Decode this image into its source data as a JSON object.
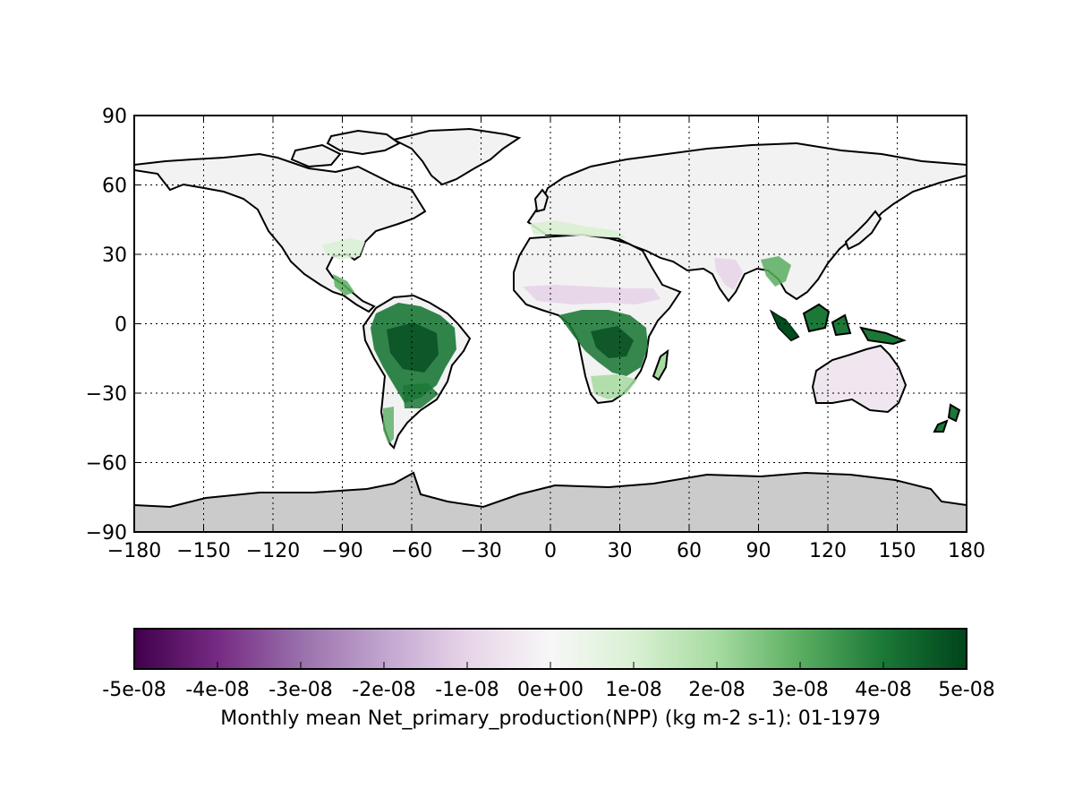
{
  "map": {
    "type": "global-raster-map",
    "projection": "plate-carree",
    "x_axis": {
      "range": [
        -180,
        180
      ],
      "ticks": [
        {
          "value": -180,
          "label": "−180"
        },
        {
          "value": -150,
          "label": "−150"
        },
        {
          "value": -120,
          "label": "−120"
        },
        {
          "value": -90,
          "label": "−90"
        },
        {
          "value": -60,
          "label": "−60"
        },
        {
          "value": -30,
          "label": "−30"
        },
        {
          "value": 0,
          "label": "0"
        },
        {
          "value": 30,
          "label": "30"
        },
        {
          "value": 60,
          "label": "60"
        },
        {
          "value": 90,
          "label": "90"
        },
        {
          "value": 120,
          "label": "120"
        },
        {
          "value": 150,
          "label": "150"
        },
        {
          "value": 180,
          "label": "180"
        }
      ]
    },
    "y_axis": {
      "range": [
        -90,
        90
      ],
      "ticks": [
        {
          "value": 90,
          "label": "90"
        },
        {
          "value": 60,
          "label": "60"
        },
        {
          "value": 30,
          "label": "30"
        },
        {
          "value": 0,
          "label": "0"
        },
        {
          "value": -30,
          "label": "−30"
        },
        {
          "value": -60,
          "label": "−60"
        },
        {
          "value": -90,
          "label": "−90"
        }
      ]
    },
    "grid": "dotted",
    "colors": {
      "neutral_land": "#f2f2f2",
      "antarctica": "#cbcbcb",
      "coastline": "#000000"
    },
    "regions": [
      {
        "name": "Amazon",
        "level": "high"
      },
      {
        "name": "Central Africa",
        "level": "high"
      },
      {
        "name": "Indonesia",
        "level": "high"
      },
      {
        "name": "Southeast Asia",
        "level": "medium"
      },
      {
        "name": "Sahel",
        "level": "negative-low"
      },
      {
        "name": "Australia",
        "level": "negative-low"
      }
    ]
  },
  "colorbar": {
    "colormap": "PRGn",
    "min": -5e-08,
    "max": 5e-08,
    "stops": [
      "#40004b",
      "#762a83",
      "#9970ab",
      "#c2a5cf",
      "#e7d4e8",
      "#f7f7f7",
      "#d9f0d3",
      "#a6dba0",
      "#5aae61",
      "#1b7837",
      "#00441b"
    ],
    "tick_labels": [
      "-5e-08",
      "-4e-08",
      "-3e-08",
      "-2e-08",
      "-1e-08",
      "0e+00",
      "1e-08",
      "2e-08",
      "3e-08",
      "4e-08",
      "5e-08"
    ],
    "label": "Monthly mean Net_primary_production(NPP) (kg m-2 s-1): 01-1979"
  }
}
